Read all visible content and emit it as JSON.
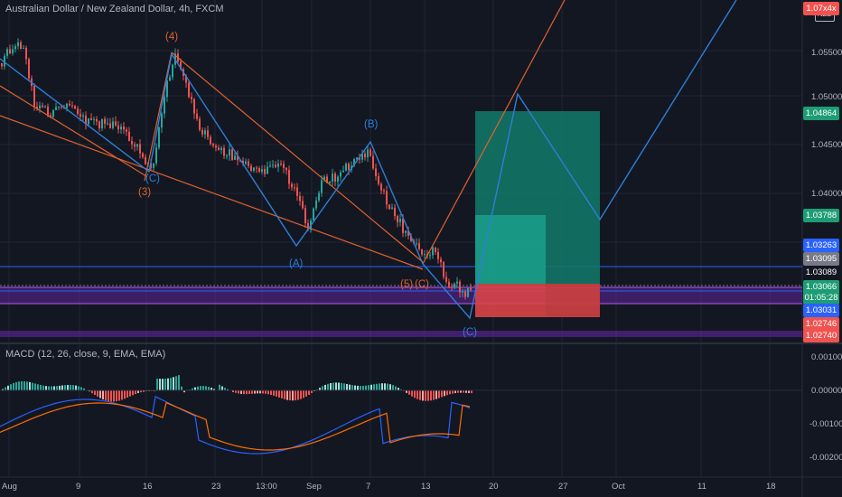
{
  "symbol_title": "Australian Dollar / New Zealand Dollar, 4h, FXCM",
  "currency_badge": "NZD",
  "macd_title": "MACD (12, 26, close, 9, EMA, EMA)",
  "colors": {
    "background": "#131722",
    "bull": "#26a69a",
    "bear": "#ef5350",
    "orange": "#e0622f",
    "blue": "#2e7fd9",
    "purple": "#8a2be2"
  },
  "price_axis_ticks": [
    "1.05500",
    "1.05000",
    "1.04500",
    "1.04000"
  ],
  "macd_axis_ticks": [
    "0.00100",
    "0.00000",
    "-0.00100",
    "-0.00200"
  ],
  "time_axis_ticks": [
    "Aug",
    "9",
    "16",
    "23",
    "13:00",
    "Sep",
    "7",
    "13",
    "20",
    "27",
    "Oct",
    "11",
    "18"
  ],
  "price_badges": [
    {
      "label": "1.07x4x",
      "color": "#ef5350",
      "top": "top"
    },
    {
      "label": "1.04864",
      "color": "#1e9d74"
    },
    {
      "label": "1.03788",
      "color": "#1e9d74"
    },
    {
      "label": "1.03263",
      "color": "#2962ff"
    },
    {
      "label": "1.03095",
      "color": "#787b86"
    },
    {
      "label": "1.03089",
      "color": "#131722"
    },
    {
      "label": "1.03066",
      "color": "#1e9d74"
    },
    {
      "label": "01:05:28",
      "color": "#1e9d74"
    },
    {
      "label": "1.03031",
      "color": "#2962ff"
    },
    {
      "label": "1.02746",
      "color": "#ef5350"
    },
    {
      "label": "1.02740",
      "color": "#ef5350"
    }
  ],
  "wave_labels_orange": [
    "(4)",
    "(3)",
    "(5)",
    "(C)"
  ],
  "wave_labels_blue": [
    "(B)",
    "(C)",
    "(A)",
    "(C)"
  ]
}
